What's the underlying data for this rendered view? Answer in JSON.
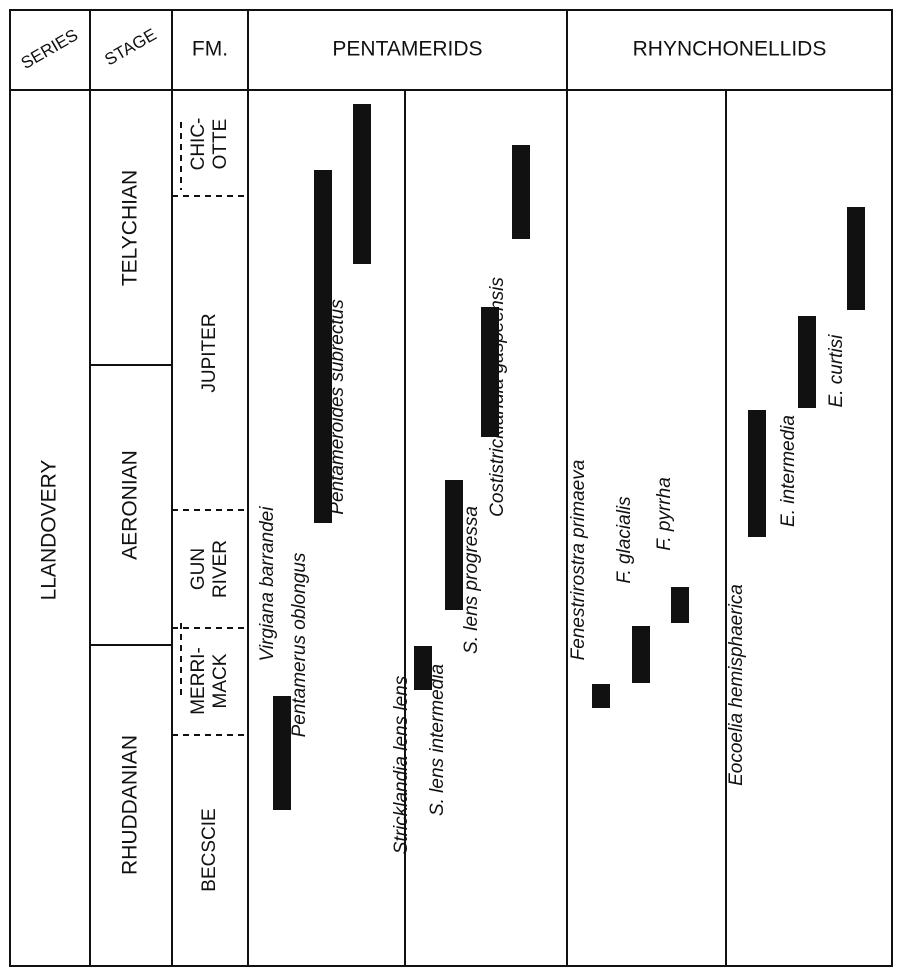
{
  "headers": {
    "series": "SERIES",
    "stage": "STAGE",
    "formation": "FM.",
    "group_a": "PENTAMERIDS",
    "group_b": "RHYNCHONELLIDS"
  },
  "series_name": "LLANDOVERY",
  "stages": [
    {
      "name": "TELYCHIAN"
    },
    {
      "name": "AERONIAN"
    },
    {
      "name": "RHUDDANIAN"
    }
  ],
  "formations": [
    {
      "lines": [
        "CHIC-",
        "OTTE"
      ]
    },
    {
      "lines": [
        "JUPITER"
      ]
    },
    {
      "lines": [
        "GUN",
        "RIVER"
      ]
    },
    {
      "lines": [
        "MERRI-",
        "MACK"
      ]
    },
    {
      "lines": [
        "BECSCIE"
      ]
    }
  ],
  "chart_data": {
    "type": "range_chart",
    "groups": [
      {
        "name": "PENTAMERIDS",
        "taxa": [
          {
            "name": "Virgiana barrandei",
            "range": [
              "lower Becscie",
              "Merrimack"
            ]
          },
          {
            "name": "Pentamerus oblongus",
            "range": [
              "Gun River",
              "lower Chicotte"
            ]
          },
          {
            "name": "Pentameroides subrectus",
            "range": [
              "upper Jupiter",
              "Chicotte"
            ]
          },
          {
            "name": "Stricklandia lens lens",
            "range": [
              "Merrimack",
              "Merrimack"
            ]
          },
          {
            "name": "S. lens intermedia",
            "range": [
              "Gun River",
              "Gun River"
            ]
          },
          {
            "name": "S. lens progressa",
            "range": [
              "lower Jupiter",
              "lower Jupiter"
            ]
          },
          {
            "name": "Costistricklandia gaspeensis",
            "range": [
              "upper Jupiter",
              "Chicotte"
            ]
          }
        ]
      },
      {
        "name": "RHYNCHONELLIDS",
        "taxa": [
          {
            "name": "Fenestrirostra primaeva",
            "range": [
              "Merrimack",
              "Merrimack"
            ]
          },
          {
            "name": "F. glacialis",
            "range": [
              "Merrimack",
              "Gun River"
            ]
          },
          {
            "name": "F. pyrrha",
            "range": [
              "Gun River",
              "Gun River"
            ]
          },
          {
            "name": "Eocoelia hemisphaerica",
            "range": [
              "lower Jupiter",
              "lower Jupiter"
            ]
          },
          {
            "name": "E. intermedia",
            "range": [
              "lower Jupiter",
              "upper Jupiter"
            ]
          },
          {
            "name": "E. curtisi",
            "range": [
              "upper Jupiter",
              "upper Jupiter"
            ]
          }
        ]
      }
    ]
  }
}
